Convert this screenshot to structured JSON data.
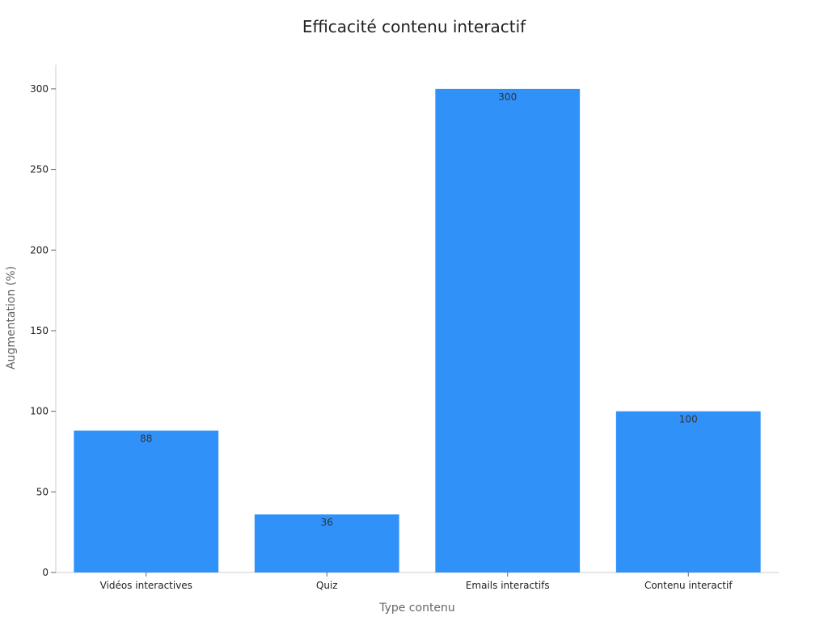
{
  "chart_data": {
    "type": "bar",
    "title": "Efficacité contenu interactif",
    "xlabel": "Type contenu",
    "ylabel": "Augmentation (%)",
    "categories": [
      "Vidéos interactives",
      "Quiz",
      "Emails interactifs",
      "Contenu interactif"
    ],
    "values": [
      88,
      36,
      300,
      100
    ],
    "ylim": [
      0,
      315
    ],
    "yticks": [
      0,
      50,
      100,
      150,
      200,
      250,
      300
    ],
    "data_labels": [
      "88",
      "36",
      "300",
      "100"
    ],
    "bar_color": "#3091f9",
    "grid": false,
    "legend": "none"
  }
}
